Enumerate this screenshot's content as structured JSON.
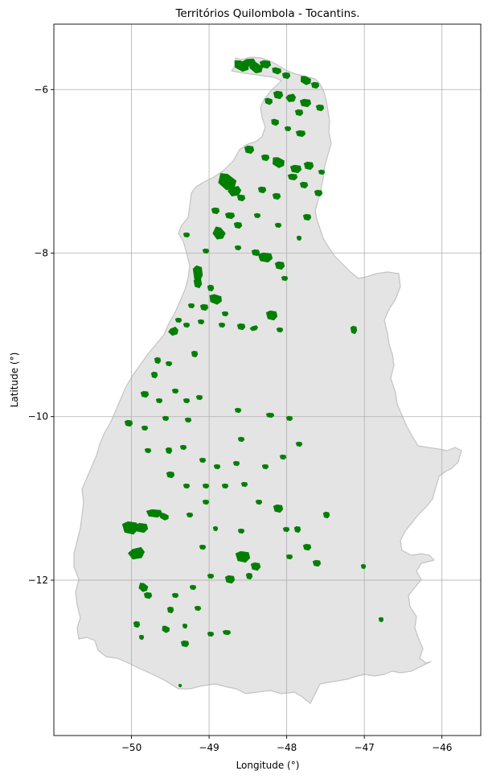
{
  "map": {
    "title": "Territórios Quilombola - Tocantins.",
    "xlabel": "Longitude (°)",
    "ylabel": "Latitude (°)",
    "xlim": [
      -51.0,
      -45.5
    ],
    "ylim": [
      -13.9,
      -5.2
    ],
    "xticks": [
      {
        "value": -50,
        "label": "−50"
      },
      {
        "value": -49,
        "label": "−49"
      },
      {
        "value": -48,
        "label": "−48"
      },
      {
        "value": -47,
        "label": "−47"
      },
      {
        "value": -46,
        "label": "−46"
      }
    ],
    "yticks": [
      {
        "value": -6,
        "label": "−6"
      },
      {
        "value": -8,
        "label": "−8"
      },
      {
        "value": -10,
        "label": "−10"
      },
      {
        "value": -12,
        "label": "−12"
      }
    ],
    "grid": true,
    "colors": {
      "state_fill": "#e4e4e4",
      "state_edge": "#c3c3c3",
      "territory_fill": "#008000",
      "grid": "#b0b0b0"
    }
  }
}
